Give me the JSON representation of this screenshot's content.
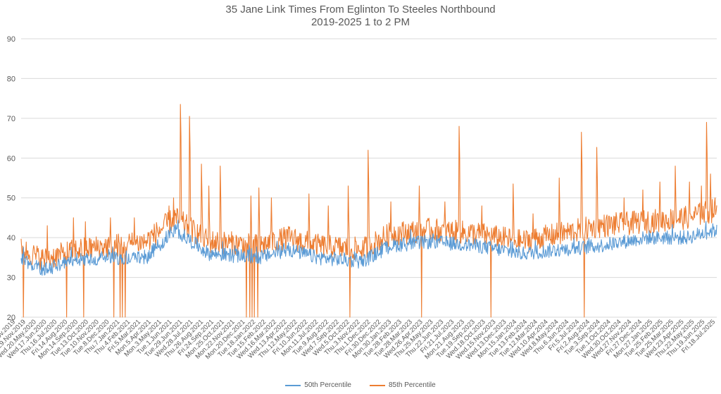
{
  "chart_data": {
    "type": "line",
    "title": "35 Jane Link Times From Eglinton To Steeles Northbound",
    "subtitle": "2019-2025 1 to 2 PM",
    "ylim": [
      20,
      90
    ],
    "yticks": [
      "20",
      "30",
      "40",
      "50",
      "60",
      "70",
      "80",
      "90"
    ],
    "grid": true,
    "legend_position": "bottom",
    "colors": {
      "p50": "#5b9bd5",
      "p85": "#ed7d31",
      "grid": "#d9d9d9"
    },
    "x_date_range": [
      "2019-11-01",
      "2025-07-18"
    ],
    "x_tick_labels": [
      "Fri.1.Nov.2019",
      "Fri.29.Nov.2019",
      "Wed.20.May.2020",
      "Wed.17.Jun.2020",
      "Thu.16.Jul.2020",
      "Fri.14.Aug.2020",
      "Mon.14.Sep.2020",
      "Tue.13.Oct.2020",
      "Tue.10.Nov.2020",
      "Tue.8.Dec.2020",
      "Thu.7.Jan.2021",
      "Thu.4.Feb.2021",
      "Fri.5.Mar.2021",
      "Mon.5.Apr.2021",
      "Mon.3.May.2021",
      "Tue.1.Jun.2021",
      "Tue.29.Jun.2021",
      "Wed.28.Jul.2021",
      "Thu.26.Aug.2021",
      "Fri.24.Sep.2021",
      "Mon.25.Oct.2021",
      "Mon.22.Nov.2021",
      "Mon.20.Dec.2021",
      "Tue.18.Jan.2022",
      "Tue.15.Feb.2022",
      "Wed.16.Mar.2022",
      "Wed.13.Apr.2022",
      "Thu.12.May.2022",
      "Fri.10.Jun.2022",
      "Mon.11.Jul.2022",
      "Tue.9.Aug.2022",
      "Wed.7.Sep.2022",
      "Wed.5.Oct.2022",
      "Thu.3.Nov.2022",
      "Thu.1.Dec.2022",
      "Fri.30.Dec.2022",
      "Mon.30.Jan.2023",
      "Tue.28.Feb.2023",
      "Tue.28.Mar.2023",
      "Wed.26.Apr.2023",
      "Thu.25.May.2023",
      "Thu.22.Jun.2023",
      "Fri.21.Jul.2023",
      "Mon.21.Aug.2023",
      "Tue.19.Sep.2023",
      "Wed.18.Oct.2023",
      "Wed.15.Nov.2023",
      "Wed.13.Dec.2023",
      "Mon.15.Jan.2024",
      "Tue.13.Feb.2024",
      "Tue.12.Mar.2024",
      "Wed.10.Apr.2024",
      "Wed.8.May.2024",
      "Thu.6.Jun.2024",
      "Fri.5.Jul.2024",
      "Fri.2.Aug.2024",
      "Tue.3.Sep.2024",
      "Tue.1.Oct.2024",
      "Wed.30.Oct.2024",
      "Wed.27.Nov.2024",
      "Fri.27.Dec.2024",
      "Mon.27.Jan.2025",
      "Tue.25.Feb.2025",
      "Tue.25.Mar.2025",
      "Wed.23.Apr.2025",
      "Thu.22.May.2025",
      "Thu.19.Jun.2025",
      "Fri.18.Jul.2025"
    ],
    "series": [
      {
        "name": "50th Percentile",
        "color": "#5b9bd5",
        "trend": [
          [
            0,
            34.5
          ],
          [
            40,
            32
          ],
          [
            100,
            34.5
          ],
          [
            160,
            35
          ],
          [
            220,
            35
          ],
          [
            270,
            42
          ],
          [
            330,
            36
          ],
          [
            420,
            35
          ],
          [
            470,
            37
          ],
          [
            520,
            35
          ],
          [
            600,
            34
          ],
          [
            650,
            38
          ],
          [
            720,
            39
          ],
          [
            800,
            38
          ],
          [
            880,
            36
          ],
          [
            950,
            37
          ],
          [
            1020,
            38
          ],
          [
            1100,
            40
          ],
          [
            1170,
            40
          ],
          [
            1223,
            42
          ]
        ],
        "noise": 1.8,
        "values": []
      },
      {
        "name": "85th Percentile",
        "color": "#ed7d31",
        "trend": [
          [
            0,
            37
          ],
          [
            40,
            34.5
          ],
          [
            100,
            37
          ],
          [
            160,
            38
          ],
          [
            220,
            39
          ],
          [
            270,
            45
          ],
          [
            330,
            39
          ],
          [
            420,
            38
          ],
          [
            470,
            40
          ],
          [
            520,
            38
          ],
          [
            600,
            37
          ],
          [
            650,
            41
          ],
          [
            720,
            42
          ],
          [
            800,
            41
          ],
          [
            880,
            39
          ],
          [
            950,
            41
          ],
          [
            1020,
            43
          ],
          [
            1100,
            44
          ],
          [
            1170,
            45
          ],
          [
            1223,
            47
          ]
        ],
        "noise": 3,
        "spikes": [
          [
            46,
            43
          ],
          [
            92,
            45
          ],
          [
            113,
            44
          ],
          [
            157,
            45
          ],
          [
            199,
            45
          ],
          [
            230,
            42
          ],
          [
            260,
            48
          ],
          [
            268,
            50
          ],
          [
            280,
            73.5
          ],
          [
            296,
            70.5
          ],
          [
            317,
            58.5
          ],
          [
            330,
            53
          ],
          [
            350,
            58
          ],
          [
            404,
            50.5
          ],
          [
            418,
            52.5
          ],
          [
            440,
            50
          ],
          [
            506,
            51
          ],
          [
            540,
            48
          ],
          [
            575,
            53
          ],
          [
            610,
            62
          ],
          [
            650,
            49
          ],
          [
            700,
            53
          ],
          [
            745,
            49
          ],
          [
            770,
            68
          ],
          [
            810,
            48
          ],
          [
            865,
            53.5
          ],
          [
            900,
            46
          ],
          [
            946,
            55
          ],
          [
            985,
            66.5
          ],
          [
            1012,
            62.7
          ],
          [
            1060,
            50
          ],
          [
            1093,
            52
          ],
          [
            1123,
            54
          ],
          [
            1150,
            58
          ],
          [
            1175,
            54
          ],
          [
            1196,
            53
          ],
          [
            1205,
            69
          ],
          [
            1212,
            56
          ],
          [
            1220,
            50
          ]
        ],
        "drops": [
          [
            4,
            20
          ],
          [
            80,
            20
          ],
          [
            110,
            20
          ],
          [
            163,
            20
          ],
          [
            174,
            20
          ],
          [
            178,
            20
          ],
          [
            183,
            20
          ],
          [
            396,
            20
          ],
          [
            402,
            20
          ],
          [
            406,
            20
          ],
          [
            410,
            20
          ],
          [
            416,
            20
          ],
          [
            578,
            20
          ],
          [
            704,
            20
          ],
          [
            826,
            20
          ],
          [
            990,
            20
          ]
        ],
        "values": []
      }
    ]
  }
}
